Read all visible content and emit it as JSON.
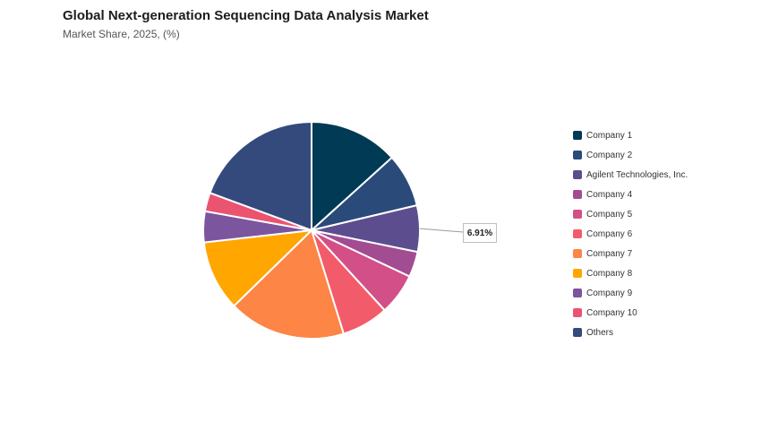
{
  "header": {
    "title": "Global Next-generation Sequencing Data Analysis Market",
    "subtitle": "Market Share, 2025, (%)"
  },
  "chart_data": {
    "type": "pie",
    "title": "Global Next-generation Sequencing Data Analysis Market",
    "subtitle": "Market Share, 2025, (%)",
    "legend_position": "right",
    "slices": [
      {
        "label": "Company 1",
        "value": 13.3,
        "color": "#003a55"
      },
      {
        "label": "Company 2",
        "value": 8.0,
        "color": "#2a4a7a"
      },
      {
        "label": "Agilent Technologies, Inc.",
        "value": 6.91,
        "color": "#5c4e8e"
      },
      {
        "label": "Company 4",
        "value": 3.8,
        "color": "#a24c92"
      },
      {
        "label": "Company 5",
        "value": 6.2,
        "color": "#d24f88"
      },
      {
        "label": "Company 6",
        "value": 7.0,
        "color": "#f25c6a"
      },
      {
        "label": "Company 7",
        "value": 17.5,
        "color": "#fd8546"
      },
      {
        "label": "Company 8",
        "value": 10.5,
        "color": "#ffa600"
      },
      {
        "label": "Company 9",
        "value": 4.6,
        "color": "#7b559e"
      },
      {
        "label": "Company 10",
        "value": 2.8,
        "color": "#ea5470"
      },
      {
        "label": "Others",
        "value": 19.39,
        "color": "#344a7d"
      }
    ],
    "callout": {
      "slice": "Agilent Technologies, Inc.",
      "text": "6.91%"
    }
  }
}
